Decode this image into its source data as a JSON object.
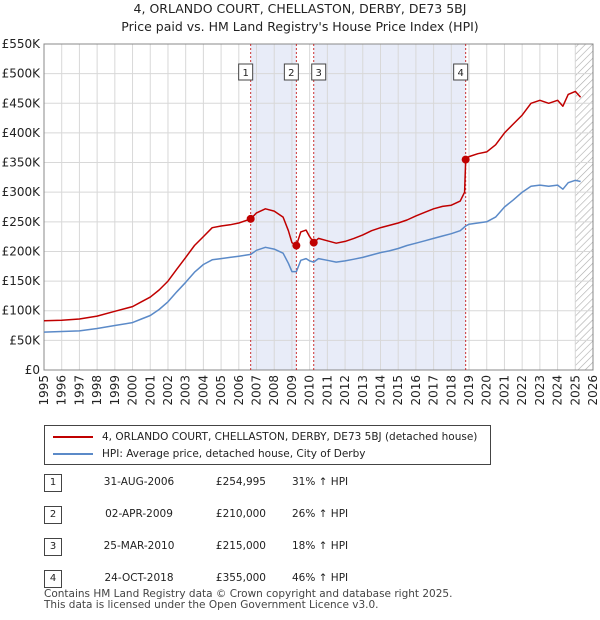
{
  "header": {
    "title_line1": "4, ORLANDO COURT, CHELLASTON, DERBY, DE73 5BJ",
    "title_line2": "Price paid vs. HM Land Registry's House Price Index (HPI)"
  },
  "colors": {
    "property": "#c00000",
    "hpi": "#5b8ac8",
    "shade": "#e8ecf8",
    "grid": "#d8d8d8",
    "hatch": "#999999"
  },
  "chart_data": {
    "type": "line",
    "title": "Price paid vs. HM Land Registry's House Price Index (HPI)",
    "xlim": [
      1995,
      2026
    ],
    "ylim": [
      0,
      550000
    ],
    "y_ticks": [
      {
        "value": 0,
        "label": "£0"
      },
      {
        "value": 50000,
        "label": "£50K"
      },
      {
        "value": 100000,
        "label": "£100K"
      },
      {
        "value": 150000,
        "label": "£150K"
      },
      {
        "value": 200000,
        "label": "£200K"
      },
      {
        "value": 250000,
        "label": "£250K"
      },
      {
        "value": 300000,
        "label": "£300K"
      },
      {
        "value": 350000,
        "label": "£350K"
      },
      {
        "value": 400000,
        "label": "£400K"
      },
      {
        "value": 450000,
        "label": "£450K"
      },
      {
        "value": 500000,
        "label": "£500K"
      },
      {
        "value": 550000,
        "label": "£550K"
      }
    ],
    "x_ticks": [
      "1995",
      "1996",
      "1997",
      "1998",
      "1999",
      "2000",
      "2001",
      "2002",
      "2003",
      "2004",
      "2005",
      "2006",
      "2007",
      "2008",
      "2009",
      "2010",
      "2011",
      "2012",
      "2013",
      "2014",
      "2015",
      "2016",
      "2017",
      "2018",
      "2019",
      "2020",
      "2021",
      "2022",
      "2023",
      "2024",
      "2025",
      "2026"
    ],
    "shaded_ranges": [
      [
        2006.67,
        2009.25
      ],
      [
        2010.23,
        2018.81
      ]
    ],
    "hatched_from": 2025.0,
    "series": [
      {
        "name": "4, ORLANDO COURT, CHELLASTON, DERBY, DE73 5BJ (detached house)",
        "x": [
          1995.0,
          1996.0,
          1997.0,
          1998.0,
          1999.0,
          2000.0,
          2000.5,
          2001.0,
          2001.5,
          2002.0,
          2002.5,
          2003.0,
          2003.5,
          2004.0,
          2004.5,
          2005.0,
          2005.5,
          2006.0,
          2006.67,
          2007.0,
          2007.5,
          2008.0,
          2008.5,
          2008.8,
          2009.0,
          2009.25,
          2009.5,
          2009.8,
          2010.0,
          2010.23,
          2010.5,
          2011.0,
          2011.5,
          2012.0,
          2012.5,
          2013.0,
          2013.5,
          2014.0,
          2014.5,
          2015.0,
          2015.5,
          2016.0,
          2016.5,
          2017.0,
          2017.5,
          2018.0,
          2018.5,
          2018.75,
          2018.81,
          2019.0,
          2019.5,
          2020.0,
          2020.5,
          2021.0,
          2021.5,
          2022.0,
          2022.5,
          2023.0,
          2023.5,
          2024.0,
          2024.3,
          2024.6,
          2025.0,
          2025.3
        ],
        "values": [
          83000,
          84000,
          86000,
          91000,
          99000,
          107000,
          115000,
          123000,
          135000,
          150000,
          170000,
          190000,
          210000,
          225000,
          240000,
          243000,
          245000,
          248000,
          254995,
          265000,
          272000,
          268000,
          258000,
          235000,
          215000,
          210000,
          233000,
          236000,
          225000,
          215000,
          222000,
          218000,
          214000,
          217000,
          222000,
          228000,
          235000,
          240000,
          244000,
          248000,
          253000,
          260000,
          266000,
          272000,
          276000,
          278000,
          285000,
          300000,
          355000,
          360000,
          365000,
          368000,
          380000,
          400000,
          415000,
          430000,
          450000,
          455000,
          450000,
          455000,
          445000,
          465000,
          470000,
          460000
        ]
      },
      {
        "name": "HPI: Average price, detached house, City of Derby",
        "x": [
          1995.0,
          1996.0,
          1997.0,
          1998.0,
          1999.0,
          2000.0,
          2000.5,
          2001.0,
          2001.5,
          2002.0,
          2002.5,
          2003.0,
          2003.5,
          2004.0,
          2004.5,
          2005.0,
          2005.5,
          2006.0,
          2006.67,
          2007.0,
          2007.5,
          2008.0,
          2008.5,
          2008.8,
          2009.0,
          2009.25,
          2009.5,
          2009.8,
          2010.0,
          2010.23,
          2010.5,
          2011.0,
          2011.5,
          2012.0,
          2012.5,
          2013.0,
          2013.5,
          2014.0,
          2014.5,
          2015.0,
          2015.5,
          2016.0,
          2016.5,
          2017.0,
          2017.5,
          2018.0,
          2018.5,
          2018.81,
          2019.0,
          2019.5,
          2020.0,
          2020.5,
          2021.0,
          2021.5,
          2022.0,
          2022.5,
          2023.0,
          2023.5,
          2024.0,
          2024.3,
          2024.6,
          2025.0,
          2025.3
        ],
        "values": [
          64000,
          65000,
          66000,
          70000,
          75000,
          80000,
          86000,
          92000,
          102000,
          115000,
          132000,
          148000,
          165000,
          178000,
          186000,
          188000,
          190000,
          192000,
          195000,
          202000,
          207000,
          204000,
          197000,
          180000,
          166000,
          166000,
          185000,
          188000,
          184000,
          182000,
          188000,
          185000,
          182000,
          184000,
          187000,
          190000,
          194000,
          198000,
          201000,
          205000,
          210000,
          214000,
          218000,
          222000,
          226000,
          230000,
          235000,
          243000,
          246000,
          248000,
          250000,
          258000,
          275000,
          287000,
          300000,
          310000,
          312000,
          310000,
          312000,
          305000,
          316000,
          320000,
          318000
        ]
      }
    ],
    "transactions": [
      {
        "id": "1",
        "date": "31-AUG-2006",
        "x": 2006.67,
        "price": 254995,
        "price_label": "£254,995",
        "hpi": "31% ↑ HPI"
      },
      {
        "id": "2",
        "date": "02-APR-2009",
        "x": 2009.25,
        "price": 210000,
        "price_label": "£210,000",
        "hpi": "26% ↑ HPI"
      },
      {
        "id": "3",
        "date": "25-MAR-2010",
        "x": 2010.23,
        "price": 215000,
        "price_label": "£215,000",
        "hpi": "18% ↑ HPI"
      },
      {
        "id": "4",
        "date": "24-OCT-2018",
        "x": 2018.81,
        "price": 355000,
        "price_label": "£355,000",
        "hpi": "46% ↑ HPI"
      }
    ]
  },
  "legend": {
    "property_label": "4, ORLANDO COURT, CHELLASTON, DERBY, DE73 5BJ (detached house)",
    "hpi_label": "HPI: Average price, detached house, City of Derby"
  },
  "footer": {
    "line1": "Contains HM Land Registry data © Crown copyright and database right 2025.",
    "line2": "This data is licensed under the Open Government Licence v3.0."
  }
}
